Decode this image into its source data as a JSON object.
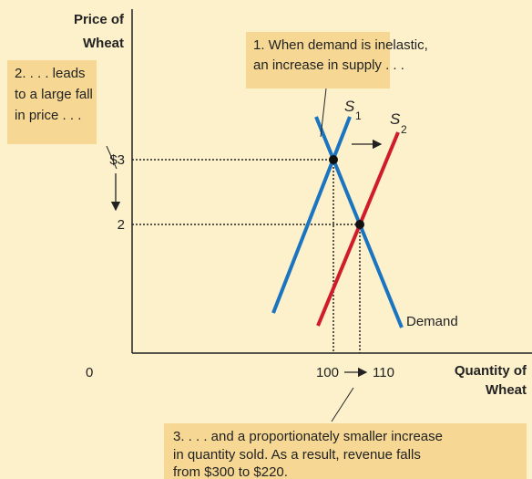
{
  "axes": {
    "y_label": [
      "Price of",
      "Wheat"
    ],
    "x_label": [
      "Quantity of",
      "Wheat"
    ],
    "origin": "0",
    "y_ticks": [
      "$3",
      "2"
    ],
    "x_ticks": [
      "100",
      "110"
    ]
  },
  "curves": {
    "s1": {
      "letter": "S",
      "sub": "1"
    },
    "s2": {
      "letter": "S",
      "sub": "2"
    },
    "demand": "Demand"
  },
  "callouts": [
    {
      "lines": [
        "1. When demand is inelastic,",
        "an increase in supply . . ."
      ]
    },
    {
      "lines": [
        "2. . . . leads",
        "to a large fall",
        "in price . . ."
      ]
    },
    {
      "lines": [
        "3.  . . . and a proportionately smaller increase",
        "in quantity sold. As a result, revenue falls",
        "from $300 to $220."
      ]
    }
  ]
}
